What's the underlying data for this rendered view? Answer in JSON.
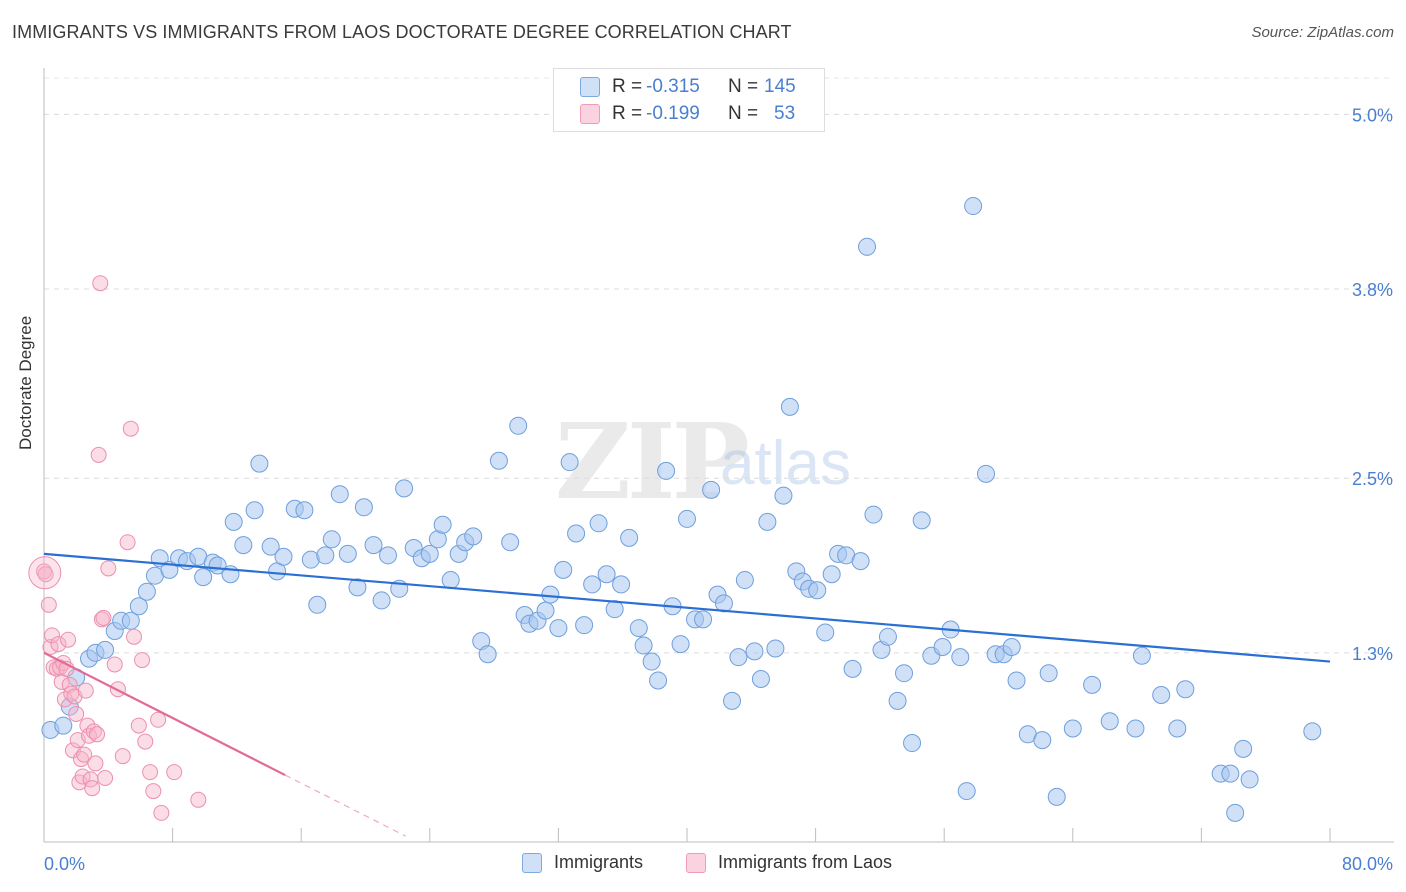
{
  "header": {
    "title": "IMMIGRANTS VS IMMIGRANTS FROM LAOS DOCTORATE DEGREE CORRELATION CHART",
    "source": "Source: ZipAtlas.com"
  },
  "watermark": {
    "zip": "ZIP",
    "atlas": "atlas"
  },
  "stats": [
    {
      "r_label": "R =",
      "r_value": "-0.315",
      "n_label": "N =",
      "n_value": "145",
      "color": "#a8c6f0"
    },
    {
      "r_label": "R =",
      "r_value": "-0.199",
      "n_label": "N =",
      "n_value": "53",
      "color": "#f6b3c8"
    }
  ],
  "legend": [
    {
      "label": "Immigrants",
      "color": "#a8c6f0"
    },
    {
      "label": "Immigrants from Laos",
      "color": "#f6b3c8"
    }
  ],
  "chart_data": {
    "type": "scatter",
    "title": "IMMIGRANTS VS IMMIGRANTS FROM LAOS DOCTORATE DEGREE CORRELATION CHART",
    "xlabel": "",
    "ylabel": "Doctorate Degree",
    "xlim": [
      0,
      80
    ],
    "ylim": [
      0,
      5.25
    ],
    "x_tick_labels": [
      "0.0%",
      "80.0%"
    ],
    "y_ticks": [
      1.3,
      2.5,
      3.8,
      5.0
    ],
    "y_tick_labels": [
      "1.3%",
      "2.5%",
      "3.8%",
      "5.0%"
    ],
    "grid": true,
    "legend_position": "bottom",
    "series": [
      {
        "name": "Immigrants",
        "color": "#a8c6f0",
        "stroke": "#6f9fdc",
        "trend": {
          "x0": 0,
          "y0": 1.98,
          "x1": 80,
          "y1": 1.24,
          "color": "#2a6fd4"
        },
        "points": [
          [
            0.4,
            0.77
          ],
          [
            1.2,
            0.8
          ],
          [
            1.6,
            0.93
          ],
          [
            2.0,
            1.13
          ],
          [
            2.8,
            1.26
          ],
          [
            3.2,
            1.3
          ],
          [
            3.8,
            1.32
          ],
          [
            4.4,
            1.45
          ],
          [
            4.8,
            1.52
          ],
          [
            5.4,
            1.52
          ],
          [
            5.9,
            1.62
          ],
          [
            6.4,
            1.72
          ],
          [
            6.9,
            1.83
          ],
          [
            7.2,
            1.95
          ],
          [
            7.8,
            1.87
          ],
          [
            8.4,
            1.95
          ],
          [
            8.9,
            1.93
          ],
          [
            9.6,
            1.96
          ],
          [
            9.9,
            1.82
          ],
          [
            10.5,
            1.92
          ],
          [
            10.8,
            1.9
          ],
          [
            11.6,
            1.84
          ],
          [
            11.8,
            2.2
          ],
          [
            12.4,
            2.04
          ],
          [
            13.1,
            2.28
          ],
          [
            13.4,
            2.6
          ],
          [
            14.1,
            2.03
          ],
          [
            14.5,
            1.86
          ],
          [
            14.9,
            1.96
          ],
          [
            15.6,
            2.29
          ],
          [
            16.2,
            2.28
          ],
          [
            16.6,
            1.94
          ],
          [
            17.0,
            1.63
          ],
          [
            17.5,
            1.97
          ],
          [
            17.9,
            2.08
          ],
          [
            18.4,
            2.39
          ],
          [
            18.9,
            1.98
          ],
          [
            19.5,
            1.75
          ],
          [
            19.9,
            2.3
          ],
          [
            20.5,
            2.04
          ],
          [
            21.0,
            1.66
          ],
          [
            21.4,
            1.97
          ],
          [
            22.1,
            1.74
          ],
          [
            22.4,
            2.43
          ],
          [
            23.0,
            2.02
          ],
          [
            23.5,
            1.95
          ],
          [
            24.0,
            1.98
          ],
          [
            24.5,
            2.08
          ],
          [
            24.8,
            2.18
          ],
          [
            25.3,
            1.8
          ],
          [
            25.8,
            1.98
          ],
          [
            26.2,
            2.06
          ],
          [
            26.7,
            2.1
          ],
          [
            27.2,
            1.38
          ],
          [
            27.6,
            1.29
          ],
          [
            28.3,
            2.62
          ],
          [
            29.0,
            2.06
          ],
          [
            29.5,
            2.86
          ],
          [
            29.9,
            1.56
          ],
          [
            30.2,
            1.5
          ],
          [
            30.7,
            1.52
          ],
          [
            31.2,
            1.59
          ],
          [
            31.5,
            1.7
          ],
          [
            32.0,
            1.47
          ],
          [
            32.3,
            1.87
          ],
          [
            32.7,
            2.61
          ],
          [
            33.1,
            2.12
          ],
          [
            33.6,
            1.49
          ],
          [
            34.1,
            1.77
          ],
          [
            34.5,
            2.19
          ],
          [
            35.0,
            1.84
          ],
          [
            35.5,
            1.6
          ],
          [
            35.9,
            1.77
          ],
          [
            36.4,
            2.09
          ],
          [
            37.0,
            1.47
          ],
          [
            37.3,
            1.35
          ],
          [
            37.8,
            1.24
          ],
          [
            38.2,
            1.11
          ],
          [
            38.7,
            2.55
          ],
          [
            39.1,
            1.62
          ],
          [
            39.6,
            1.36
          ],
          [
            40.0,
            2.22
          ],
          [
            40.5,
            1.53
          ],
          [
            41.0,
            1.53
          ],
          [
            41.5,
            2.42
          ],
          [
            41.9,
            1.7
          ],
          [
            42.3,
            1.64
          ],
          [
            42.8,
            0.97
          ],
          [
            43.2,
            1.27
          ],
          [
            43.6,
            1.8
          ],
          [
            44.2,
            1.31
          ],
          [
            44.6,
            1.12
          ],
          [
            45.0,
            2.2
          ],
          [
            45.5,
            1.33
          ],
          [
            46.0,
            2.38
          ],
          [
            46.4,
            2.99
          ],
          [
            46.8,
            1.86
          ],
          [
            47.2,
            1.79
          ],
          [
            47.6,
            1.74
          ],
          [
            48.1,
            1.73
          ],
          [
            48.6,
            1.44
          ],
          [
            49.0,
            1.84
          ],
          [
            49.4,
            1.98
          ],
          [
            49.9,
            1.97
          ],
          [
            50.3,
            1.19
          ],
          [
            50.8,
            1.93
          ],
          [
            51.2,
            4.09
          ],
          [
            51.6,
            2.25
          ],
          [
            52.1,
            1.32
          ],
          [
            52.5,
            1.41
          ],
          [
            53.1,
            0.97
          ],
          [
            53.5,
            1.16
          ],
          [
            54.0,
            0.68
          ],
          [
            54.6,
            2.21
          ],
          [
            55.2,
            1.28
          ],
          [
            55.9,
            1.34
          ],
          [
            56.4,
            1.46
          ],
          [
            57.0,
            1.27
          ],
          [
            57.4,
            0.35
          ],
          [
            57.8,
            4.37
          ],
          [
            58.6,
            2.53
          ],
          [
            59.2,
            1.29
          ],
          [
            59.7,
            1.29
          ],
          [
            60.2,
            1.34
          ],
          [
            60.5,
            1.11
          ],
          [
            61.2,
            0.74
          ],
          [
            62.1,
            0.7
          ],
          [
            62.5,
            1.16
          ],
          [
            63.0,
            0.31
          ],
          [
            64.0,
            0.78
          ],
          [
            65.2,
            1.08
          ],
          [
            66.3,
            0.83
          ],
          [
            67.9,
            0.78
          ],
          [
            68.3,
            1.28
          ],
          [
            69.5,
            1.01
          ],
          [
            70.5,
            0.78
          ],
          [
            71.0,
            1.05
          ],
          [
            73.2,
            0.47
          ],
          [
            73.8,
            0.47
          ],
          [
            74.1,
            0.2
          ],
          [
            74.6,
            0.64
          ],
          [
            75.0,
            0.43
          ],
          [
            78.9,
            0.76
          ]
        ]
      },
      {
        "name": "Immigrants from Laos",
        "color": "#f6b3c8",
        "stroke": "#ec8fb0",
        "trend": {
          "x0": 0,
          "y0": 1.3,
          "x1": 15.0,
          "y1": 0.46,
          "color": "#e26a98"
        },
        "trend_dashed": {
          "x0": 15.0,
          "y0": 0.46,
          "x1": 22.5,
          "y1": 0.04
        },
        "points": [
          [
            0.0,
            1.86
          ],
          [
            0.1,
            1.84
          ],
          [
            0.3,
            1.63
          ],
          [
            0.4,
            1.34
          ],
          [
            0.5,
            1.42
          ],
          [
            0.6,
            1.2
          ],
          [
            0.8,
            1.19
          ],
          [
            0.9,
            1.36
          ],
          [
            1.0,
            1.2
          ],
          [
            1.1,
            1.1
          ],
          [
            1.2,
            1.23
          ],
          [
            1.3,
            0.98
          ],
          [
            1.4,
            1.19
          ],
          [
            1.5,
            1.39
          ],
          [
            1.6,
            1.08
          ],
          [
            1.7,
            1.02
          ],
          [
            1.8,
            0.63
          ],
          [
            1.9,
            1.0
          ],
          [
            2.0,
            0.88
          ],
          [
            2.1,
            0.7
          ],
          [
            2.2,
            0.41
          ],
          [
            2.3,
            0.57
          ],
          [
            2.4,
            0.45
          ],
          [
            2.5,
            0.6
          ],
          [
            2.6,
            1.04
          ],
          [
            2.7,
            0.8
          ],
          [
            2.8,
            0.73
          ],
          [
            2.9,
            0.43
          ],
          [
            3.0,
            0.37
          ],
          [
            3.1,
            0.76
          ],
          [
            3.2,
            0.54
          ],
          [
            3.3,
            0.74
          ],
          [
            3.4,
            2.66
          ],
          [
            3.5,
            3.84
          ],
          [
            3.6,
            1.53
          ],
          [
            3.7,
            1.54
          ],
          [
            3.8,
            0.44
          ],
          [
            4.0,
            1.88
          ],
          [
            4.4,
            1.22
          ],
          [
            4.6,
            1.05
          ],
          [
            4.9,
            0.59
          ],
          [
            5.2,
            2.06
          ],
          [
            5.4,
            2.84
          ],
          [
            5.6,
            1.41
          ],
          [
            5.9,
            0.8
          ],
          [
            6.1,
            1.25
          ],
          [
            6.3,
            0.69
          ],
          [
            6.6,
            0.48
          ],
          [
            6.8,
            0.35
          ],
          [
            7.1,
            0.84
          ],
          [
            7.3,
            0.2
          ],
          [
            8.1,
            0.48
          ],
          [
            9.6,
            0.29
          ]
        ]
      }
    ]
  }
}
